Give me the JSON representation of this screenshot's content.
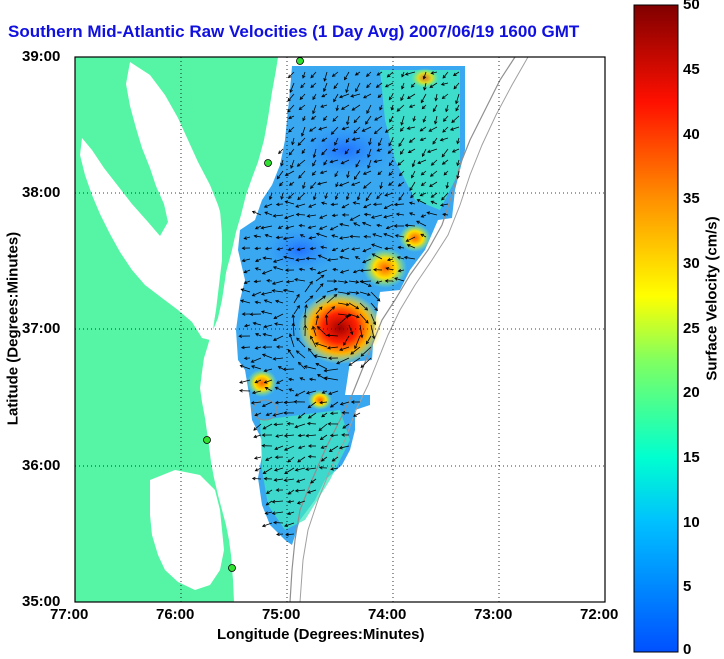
{
  "title": "Southern Mid-Atlantic Raw Velocities (1 Day Avg) 2007/06/19 1600 GMT",
  "axes": {
    "xlabel": "Longitude (Degrees:Minutes)",
    "ylabel": "Latitude (Degrees:Minutes)",
    "x_ticks": [
      "77:00",
      "76:00",
      "75:00",
      "74:00",
      "73:00",
      "72:00"
    ],
    "y_ticks": [
      "39:00",
      "38:00",
      "37:00",
      "36:00",
      "35:00"
    ]
  },
  "colorbar": {
    "label": "Surface Velocity (cm/s)",
    "ticks": [
      "50",
      "45",
      "40",
      "35",
      "30",
      "25",
      "20",
      "15",
      "10",
      "5",
      "0"
    ],
    "range": [
      0,
      50
    ]
  },
  "colors": {
    "land": "#55f5a5",
    "title": "#1010e0",
    "grid": "#000000"
  },
  "map_extent": {
    "lon": [
      -77,
      -72
    ],
    "lat": [
      35,
      39
    ]
  }
}
